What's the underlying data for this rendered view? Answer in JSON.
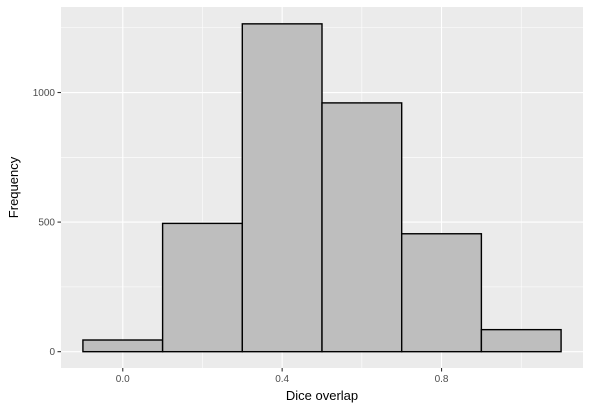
{
  "chart_data": {
    "type": "bar",
    "subtype": "histogram",
    "title": "",
    "xlabel": "Dice overlap",
    "ylabel": "Frequency",
    "bins": [
      {
        "x0": -0.1,
        "x1": 0.1,
        "value": 45
      },
      {
        "x0": 0.1,
        "x1": 0.3,
        "value": 495
      },
      {
        "x0": 0.3,
        "x1": 0.5,
        "value": 1265
      },
      {
        "x0": 0.5,
        "x1": 0.7,
        "value": 960
      },
      {
        "x0": 0.7,
        "x1": 0.9,
        "value": 455
      },
      {
        "x0": 0.9,
        "x1": 1.1,
        "value": 85
      }
    ],
    "xlim": [
      -0.155,
      1.155
    ],
    "ylim": [
      -63,
      1330
    ],
    "xticks": [
      {
        "value": 0.0,
        "label": "0.0"
      },
      {
        "value": 0.4,
        "label": "0.4"
      },
      {
        "value": 0.8,
        "label": "0.8"
      }
    ],
    "yticks": [
      {
        "value": 0,
        "label": "0"
      },
      {
        "value": 500,
        "label": "500"
      },
      {
        "value": 1000,
        "label": "1000"
      }
    ],
    "grid": true,
    "colors": {
      "panel": "#ebebeb",
      "grid_major": "#ffffff",
      "bar_fill": "#bebebe",
      "bar_stroke": "#000000",
      "tick": "#333333"
    }
  }
}
